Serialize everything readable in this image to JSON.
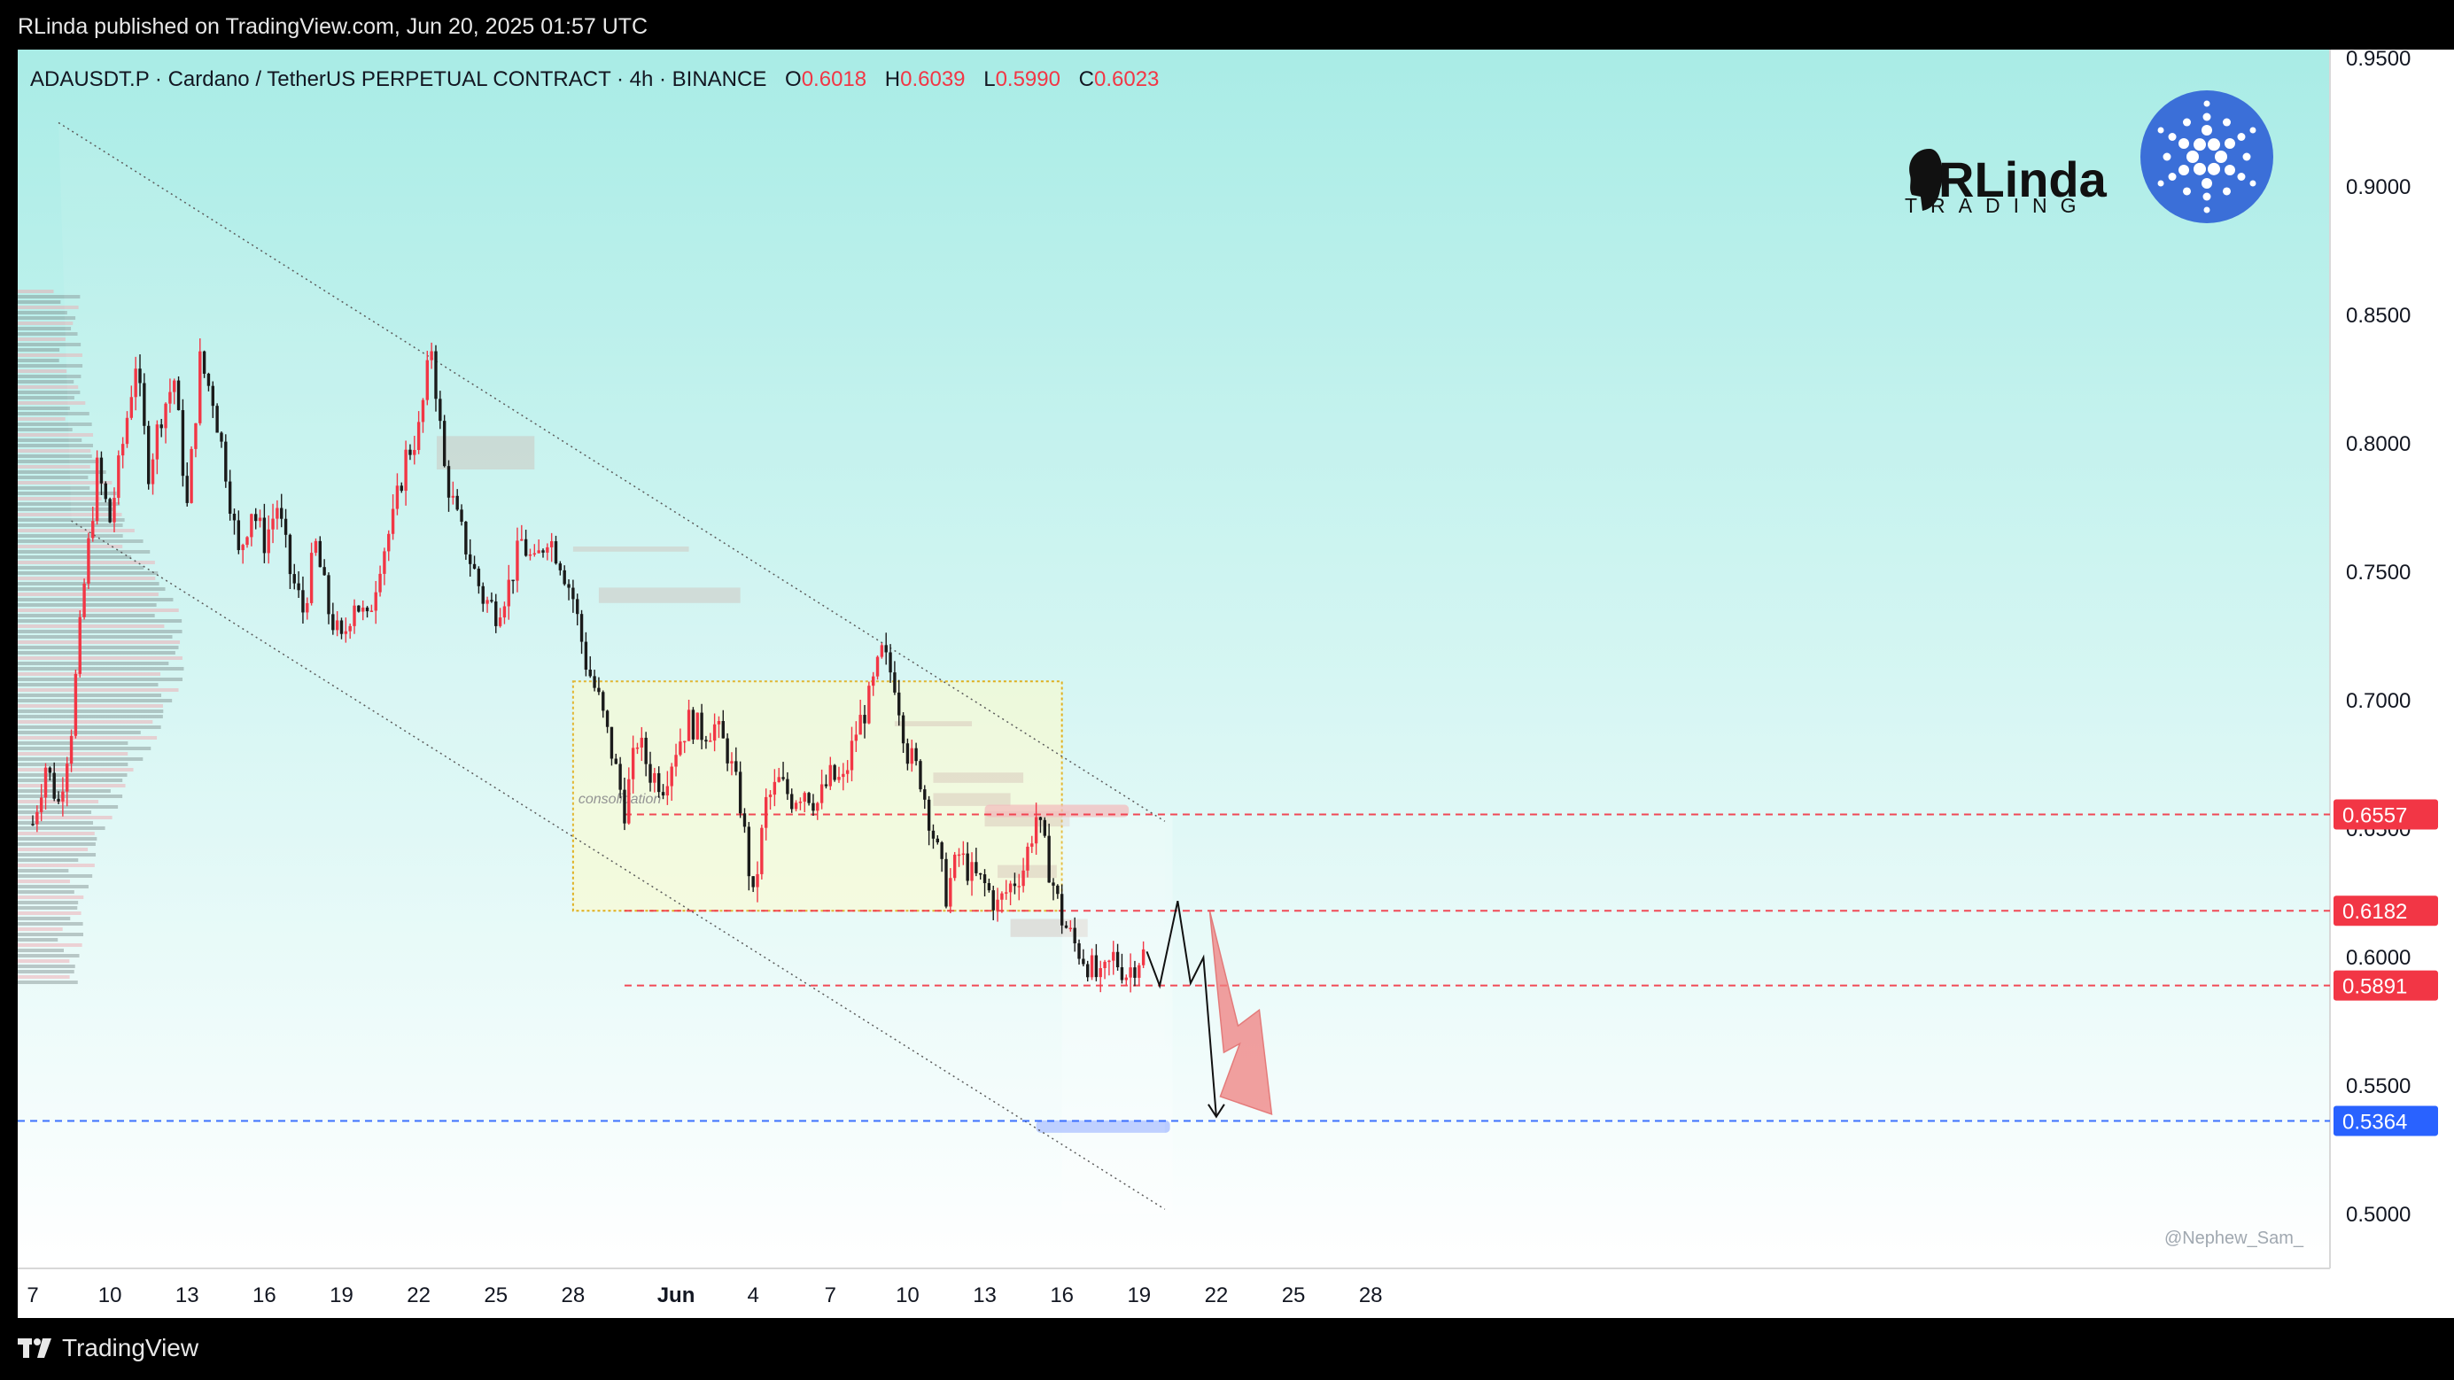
{
  "header": {
    "publisher": "RLinda published on TradingView.com, Jun 20, 2025 01:57 UTC"
  },
  "footer": {
    "brand": "TradingView",
    "brand_icon": "tradingview-logo-icon"
  },
  "symbol": {
    "title": "ADAUSDT.P · Cardano / TetherUS PERPETUAL CONTRACT · 4h · BINANCE",
    "o_label": "O",
    "o": "0.6018",
    "h_label": "H",
    "h": "0.6039",
    "l_label": "L",
    "l": "0.5990",
    "c_label": "C",
    "c": "0.6023"
  },
  "logos": {
    "rlinda_top": "RLinda",
    "rlinda_bottom": "TRADING",
    "rlinda_icon": "rlinda-head-icon",
    "cardano_icon": "cardano-logo-icon"
  },
  "watermark": "@Nephew_Sam_",
  "colors": {
    "up": "#f23645",
    "down": "#1a1a1a",
    "bg_top": "#a9ece6",
    "bg_bottom": "#ffffff",
    "level_red": "#f23645",
    "level_blue": "#2962ff",
    "zone_fill": "#fffbc8",
    "arrow_fill": "#f08080"
  },
  "chart_data": {
    "type": "candlestick",
    "title": "ADAUSDT.P · Cardano / TetherUS PERPETUAL CONTRACT · 4h · BINANCE",
    "ylim": [
      0.48,
      0.957
    ],
    "y_ticks": [
      "0.9500",
      "0.9000",
      "0.8500",
      "0.8000",
      "0.7500",
      "0.7000",
      "0.6500",
      "0.6000",
      "0.5500",
      "0.5000"
    ],
    "x_ticks": [
      "7",
      "10",
      "13",
      "16",
      "19",
      "22",
      "25",
      "28",
      "Jun",
      "4",
      "7",
      "10",
      "13",
      "16",
      "19",
      "22",
      "25",
      "28"
    ],
    "x_range_days": [
      "May 7",
      "Jun 28"
    ],
    "price_path": [
      {
        "d": 0.0,
        "p": 0.652
      },
      {
        "d": 0.5,
        "p": 0.675
      },
      {
        "d": 1.0,
        "p": 0.66
      },
      {
        "d": 1.5,
        "p": 0.69
      },
      {
        "d": 2.0,
        "p": 0.745
      },
      {
        "d": 2.5,
        "p": 0.79
      },
      {
        "d": 3.0,
        "p": 0.77
      },
      {
        "d": 3.5,
        "p": 0.8
      },
      {
        "d": 4.0,
        "p": 0.832
      },
      {
        "d": 4.5,
        "p": 0.79
      },
      {
        "d": 5.0,
        "p": 0.812
      },
      {
        "d": 5.5,
        "p": 0.825
      },
      {
        "d": 6.0,
        "p": 0.775
      },
      {
        "d": 6.5,
        "p": 0.832
      },
      {
        "d": 7.0,
        "p": 0.818
      },
      {
        "d": 7.5,
        "p": 0.79
      },
      {
        "d": 8.0,
        "p": 0.756
      },
      {
        "d": 8.5,
        "p": 0.775
      },
      {
        "d": 9.0,
        "p": 0.762
      },
      {
        "d": 9.5,
        "p": 0.776
      },
      {
        "d": 10.0,
        "p": 0.75
      },
      {
        "d": 10.5,
        "p": 0.735
      },
      {
        "d": 11.0,
        "p": 0.76
      },
      {
        "d": 11.5,
        "p": 0.735
      },
      {
        "d": 12.0,
        "p": 0.722
      },
      {
        "d": 12.5,
        "p": 0.74
      },
      {
        "d": 13.0,
        "p": 0.73
      },
      {
        "d": 13.5,
        "p": 0.755
      },
      {
        "d": 14.0,
        "p": 0.77
      },
      {
        "d": 14.5,
        "p": 0.795
      },
      {
        "d": 15.0,
        "p": 0.805
      },
      {
        "d": 15.5,
        "p": 0.838
      },
      {
        "d": 16.0,
        "p": 0.79
      },
      {
        "d": 16.5,
        "p": 0.77
      },
      {
        "d": 17.0,
        "p": 0.755
      },
      {
        "d": 17.5,
        "p": 0.74
      },
      {
        "d": 18.0,
        "p": 0.735
      },
      {
        "d": 18.5,
        "p": 0.745
      },
      {
        "d": 19.0,
        "p": 0.762
      },
      {
        "d": 19.5,
        "p": 0.752
      },
      {
        "d": 20.0,
        "p": 0.765
      },
      {
        "d": 20.5,
        "p": 0.755
      },
      {
        "d": 21.0,
        "p": 0.74
      },
      {
        "d": 21.5,
        "p": 0.715
      },
      {
        "d": 22.0,
        "p": 0.7
      },
      {
        "d": 22.5,
        "p": 0.68
      },
      {
        "d": 23.0,
        "p": 0.658
      },
      {
        "d": 23.5,
        "p": 0.685
      },
      {
        "d": 24.0,
        "p": 0.672
      },
      {
        "d": 24.5,
        "p": 0.668
      },
      {
        "d": 25.0,
        "p": 0.682
      },
      {
        "d": 25.5,
        "p": 0.692
      },
      {
        "d": 26.0,
        "p": 0.688
      },
      {
        "d": 26.5,
        "p": 0.69
      },
      {
        "d": 27.0,
        "p": 0.68
      },
      {
        "d": 27.5,
        "p": 0.66
      },
      {
        "d": 28.0,
        "p": 0.622
      },
      {
        "d": 28.5,
        "p": 0.66
      },
      {
        "d": 29.0,
        "p": 0.668
      },
      {
        "d": 29.5,
        "p": 0.662
      },
      {
        "d": 30.0,
        "p": 0.666
      },
      {
        "d": 30.5,
        "p": 0.66
      },
      {
        "d": 31.0,
        "p": 0.67
      },
      {
        "d": 31.5,
        "p": 0.668
      },
      {
        "d": 32.0,
        "p": 0.688
      },
      {
        "d": 32.5,
        "p": 0.7
      },
      {
        "d": 33.0,
        "p": 0.718
      },
      {
        "d": 33.5,
        "p": 0.708
      },
      {
        "d": 34.0,
        "p": 0.68
      },
      {
        "d": 34.5,
        "p": 0.67
      },
      {
        "d": 35.0,
        "p": 0.648
      },
      {
        "d": 35.5,
        "p": 0.625
      },
      {
        "d": 36.0,
        "p": 0.64
      },
      {
        "d": 36.5,
        "p": 0.632
      },
      {
        "d": 37.0,
        "p": 0.628
      },
      {
        "d": 37.5,
        "p": 0.62
      },
      {
        "d": 38.0,
        "p": 0.628
      },
      {
        "d": 38.5,
        "p": 0.635
      },
      {
        "d": 39.0,
        "p": 0.655
      },
      {
        "d": 39.5,
        "p": 0.635
      },
      {
        "d": 40.0,
        "p": 0.615
      },
      {
        "d": 40.5,
        "p": 0.605
      },
      {
        "d": 41.0,
        "p": 0.598
      },
      {
        "d": 41.5,
        "p": 0.59
      },
      {
        "d": 42.0,
        "p": 0.6
      },
      {
        "d": 42.5,
        "p": 0.594
      },
      {
        "d": 43.0,
        "p": 0.6
      },
      {
        "d": 43.3,
        "p": 0.6023
      }
    ],
    "levels": [
      {
        "label": "0.6557",
        "value": 0.6557,
        "color": "red"
      },
      {
        "label": "0.6182",
        "value": 0.6182,
        "color": "red"
      },
      {
        "label": "0.5891",
        "value": 0.5891,
        "color": "red"
      },
      {
        "label": "0.5364",
        "value": 0.5364,
        "color": "blue"
      }
    ],
    "annotations": [
      {
        "text": "consolidation",
        "kind": "zone",
        "d_from": 21.0,
        "d_to": 40.0,
        "p_from": 0.6182,
        "p_to": 0.7075
      }
    ],
    "channel": {
      "upper": [
        {
          "d": 1.0,
          "p": 0.925
        },
        {
          "d": 44.0,
          "p": 0.653
        }
      ],
      "lower": [
        {
          "d": 1.5,
          "p": 0.77
        },
        {
          "d": 44.0,
          "p": 0.502
        }
      ]
    },
    "forecast_path": [
      {
        "d": 43.3,
        "p": 0.6023
      },
      {
        "d": 43.8,
        "p": 0.589
      },
      {
        "d": 44.5,
        "p": 0.622
      },
      {
        "d": 45.0,
        "p": 0.59
      },
      {
        "d": 45.5,
        "p": 0.6
      },
      {
        "d": 46.0,
        "p": 0.538
      }
    ],
    "grid": false
  }
}
